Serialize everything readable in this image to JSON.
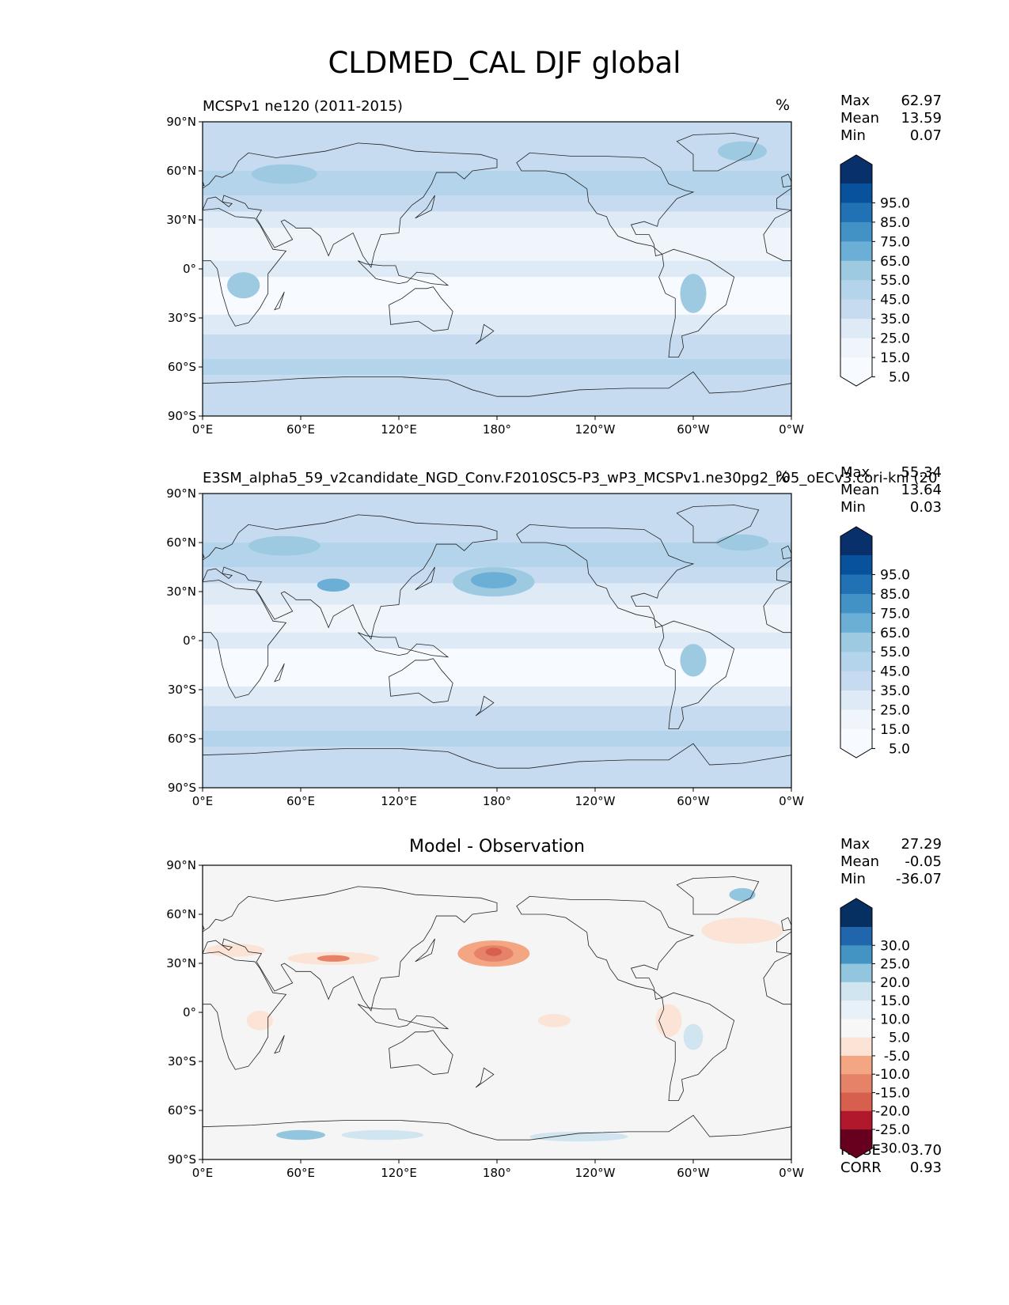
{
  "figure": {
    "title": "CLDMED_CAL DJF global"
  },
  "axes": {
    "lat_ticks": [
      "90°N",
      "60°N",
      "30°N",
      "0°",
      "30°S",
      "60°S",
      "90°S"
    ],
    "lon_ticks": [
      "0°E",
      "60°E",
      "120°E",
      "180°",
      "120°W",
      "60°W",
      "0°W"
    ]
  },
  "panels": [
    {
      "title": "MCSPv1 ne120 (2011-2015)",
      "units": "%",
      "stats": [
        {
          "label": "Max",
          "value": "62.97"
        },
        {
          "label": "Mean",
          "value": "13.59"
        },
        {
          "label": "Min",
          "value": "0.07"
        }
      ],
      "colorbar": {
        "ticks": [
          "95.0",
          "85.0",
          "75.0",
          "65.0",
          "55.0",
          "45.0",
          "35.0",
          "25.0",
          "15.0",
          "5.0"
        ],
        "colors": [
          "#08306b",
          "#08519c",
          "#2171b5",
          "#4292c6",
          "#6baed6",
          "#9ecae1",
          "#b4d4eb",
          "#c6dbef",
          "#deebf7",
          "#eff5fb",
          "#f7fbff"
        ]
      }
    },
    {
      "title": "E3SM_alpha5_59_v2candidate_NGD_Conv.F2010SC5-P3_wP3_MCSPv1.ne30pg2_r05_oECv3.cori-knl (20",
      "units": "%",
      "stats": [
        {
          "label": "Max",
          "value": "55.34"
        },
        {
          "label": "Mean",
          "value": "13.64"
        },
        {
          "label": "Min",
          "value": "0.03"
        }
      ],
      "colorbar": {
        "ticks": [
          "95.0",
          "85.0",
          "75.0",
          "65.0",
          "55.0",
          "45.0",
          "35.0",
          "25.0",
          "15.0",
          "5.0"
        ],
        "colors": [
          "#08306b",
          "#08519c",
          "#2171b5",
          "#4292c6",
          "#6baed6",
          "#9ecae1",
          "#b4d4eb",
          "#c6dbef",
          "#deebf7",
          "#eff5fb",
          "#f7fbff"
        ]
      }
    },
    {
      "title": "Model - Observation",
      "units": "",
      "stats": [
        {
          "label": "Max",
          "value": "27.29"
        },
        {
          "label": "Mean",
          "value": "-0.05"
        },
        {
          "label": "Min",
          "value": "-36.07"
        }
      ],
      "colorbar": {
        "ticks": [
          "30.0",
          "25.0",
          "20.0",
          "15.0",
          "10.0",
          "5.0",
          "-5.0",
          "-10.0",
          "-15.0",
          "-20.0",
          "-25.0",
          "-30.0"
        ],
        "colors": [
          "#053061",
          "#2166ac",
          "#4393c3",
          "#92c5de",
          "#d1e5f0",
          "#e8f1f7",
          "#f7f7f7",
          "#fbe3d6",
          "#f4a582",
          "#e58267",
          "#d6604d",
          "#b2182b",
          "#67001f"
        ]
      },
      "metrics": [
        {
          "label": "RMSE",
          "value": "3.70"
        },
        {
          "label": "CORR",
          "value": "0.93"
        }
      ]
    }
  ],
  "colors": {
    "ref_background": "#e3eef8",
    "diff_background": "#f5f5f5",
    "coast": "#222222"
  }
}
